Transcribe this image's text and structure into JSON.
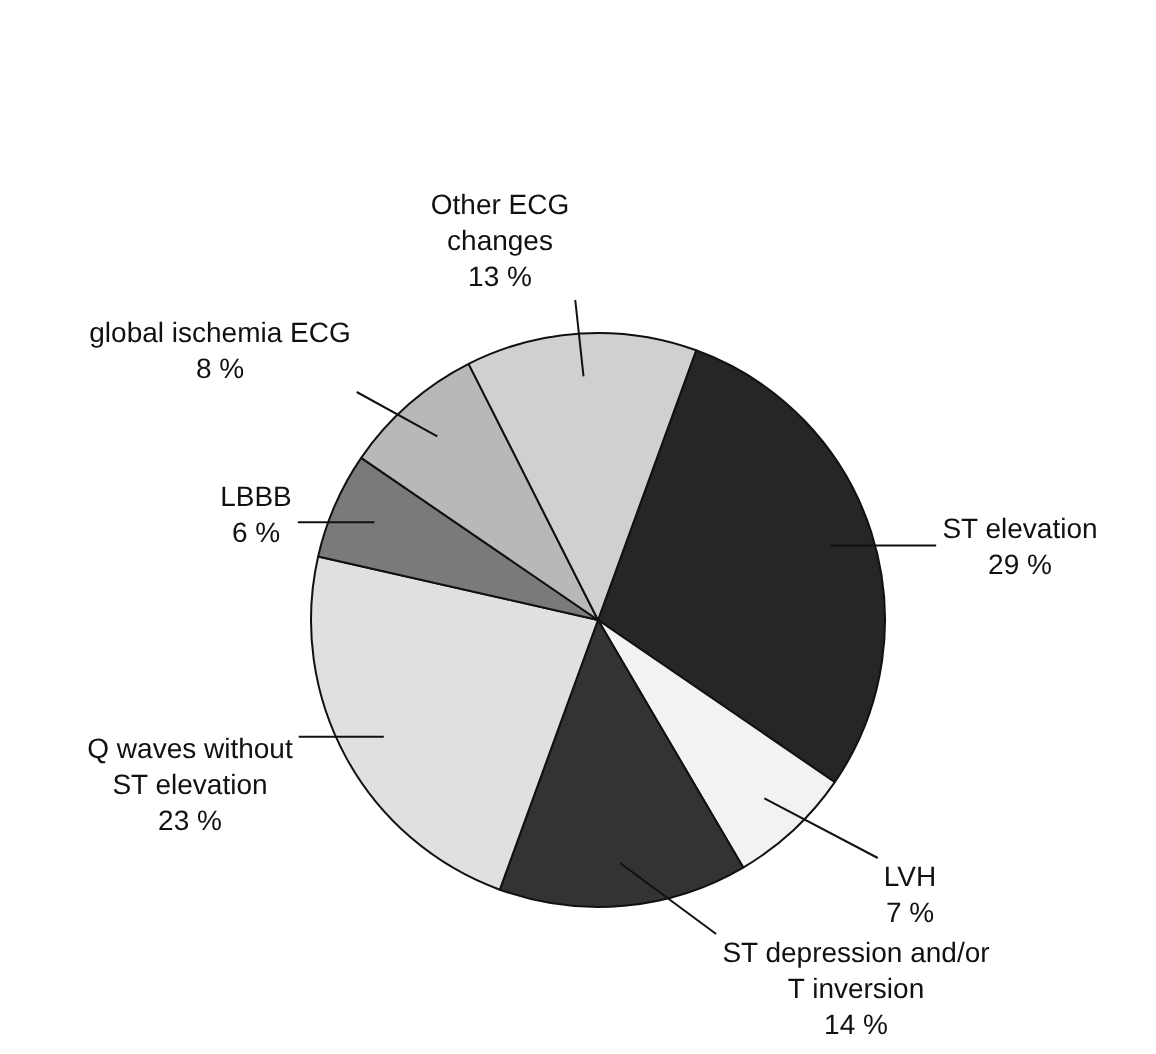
{
  "chart_data": {
    "type": "pie",
    "categories": [
      "ST elevation",
      "LVH",
      "ST depression and/or T inversion",
      "Q waves without ST elevation",
      "LBBB",
      "global ischemia ECG",
      "Other ECG changes"
    ],
    "values": [
      29,
      7,
      14,
      23,
      6,
      8,
      13
    ],
    "value_labels": [
      "29 %",
      "7 %",
      "14 %",
      "23 %",
      "6 %",
      "8 %",
      "13 %"
    ],
    "colors": [
      "#262626",
      "#f2f2f2",
      "#333333",
      "#e0e0e0",
      "#7a7a7a",
      "#b8b8b8",
      "#d0d0d0"
    ],
    "legend": false
  }
}
